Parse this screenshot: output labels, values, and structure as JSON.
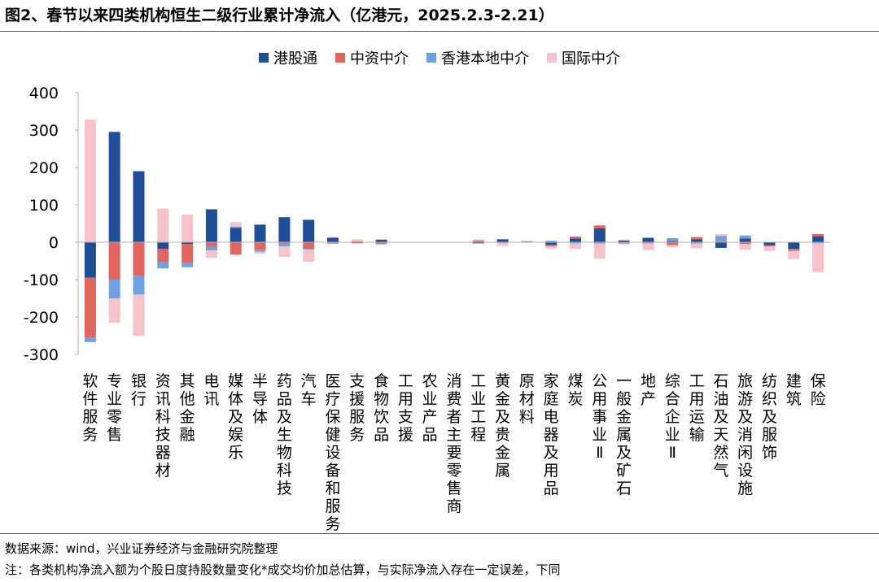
{
  "title": "图2、春节以来四类机构恒生二级行业累计净流入（亿港元，2025.2.3-2.21）",
  "legend": [
    "港股通",
    "中资中介",
    "香港本地中介",
    "国际中介"
  ],
  "source": "数据来源：wind，兴业证券经济与金融研究院整理",
  "footnote": "注：各类机构净流入额为个股日度持股数量变化*成交均价加总估算，与实际净流入存在一定误差，下同",
  "colors": {
    "港股通": "#1f4e96",
    "中资中介": "#e06660",
    "香港本地中介": "#6fa0e0",
    "国际中介": "#f7c3cb"
  },
  "chart_data": {
    "type": "bar",
    "stacked": true,
    "title": "春节以来四类机构恒生二级行业累计净流入（亿港元，2025.2.3-2.21）",
    "xlabel": "",
    "ylabel": "",
    "ylim": [
      -300,
      400
    ],
    "yticks": [
      400,
      300,
      200,
      100,
      0,
      -100,
      -200,
      -300
    ],
    "legend_position": "top",
    "grid": false,
    "categories": [
      "软件服务",
      "专业零售",
      "银行",
      "资讯科技器材",
      "其他金融",
      "电讯",
      "媒体及娱乐",
      "半导体",
      "药品及生物科技",
      "汽车",
      "医疗保健设备和服务",
      "支援服务",
      "食物饮品",
      "工用支援",
      "农业产品",
      "消费者主要零售商",
      "工业工程",
      "黄金及贵金属",
      "原材料",
      "家庭电器及用品",
      "煤炭",
      "公用事业Ⅱ",
      "一般金属及矿石",
      "地产",
      "综合企业Ⅱ",
      "工用运输",
      "石油及天然气",
      "旅游及消闲设施",
      "纺织及服饰",
      "建筑",
      "保险"
    ],
    "series": [
      {
        "name": "港股通",
        "values": [
          -95,
          295,
          190,
          -18,
          -5,
          88,
          38,
          47,
          67,
          60,
          12,
          2,
          7,
          0,
          0,
          0,
          -3,
          8,
          2,
          -7,
          10,
          37,
          5,
          12,
          3,
          8,
          -15,
          10,
          -8,
          -18,
          16
        ]
      },
      {
        "name": "中资中介",
        "values": [
          -160,
          -100,
          -90,
          -35,
          -50,
          -12,
          -33,
          -20,
          -5,
          -18,
          -2,
          -3,
          -4,
          0,
          0,
          0,
          5,
          -2,
          0,
          -4,
          5,
          8,
          -3,
          -3,
          -8,
          6,
          3,
          -5,
          -3,
          -5,
          6
        ]
      },
      {
        "name": "香港本地中介",
        "values": [
          -12,
          -50,
          -50,
          -17,
          -12,
          -10,
          4,
          -5,
          -6,
          -2,
          -2,
          0,
          -1,
          0,
          0,
          0,
          0,
          0,
          0,
          4,
          -3,
          -4,
          0,
          0,
          8,
          -4,
          14,
          8,
          0,
          0,
          -3
        ]
      },
      {
        "name": "国际中介",
        "values": [
          328,
          -65,
          -110,
          90,
          74,
          -20,
          12,
          -6,
          -28,
          -32,
          2,
          6,
          -1,
          0,
          0,
          0,
          2,
          -8,
          2,
          -6,
          -15,
          -40,
          -3,
          -18,
          -6,
          -12,
          5,
          -15,
          -12,
          -22,
          -77
        ]
      }
    ]
  }
}
